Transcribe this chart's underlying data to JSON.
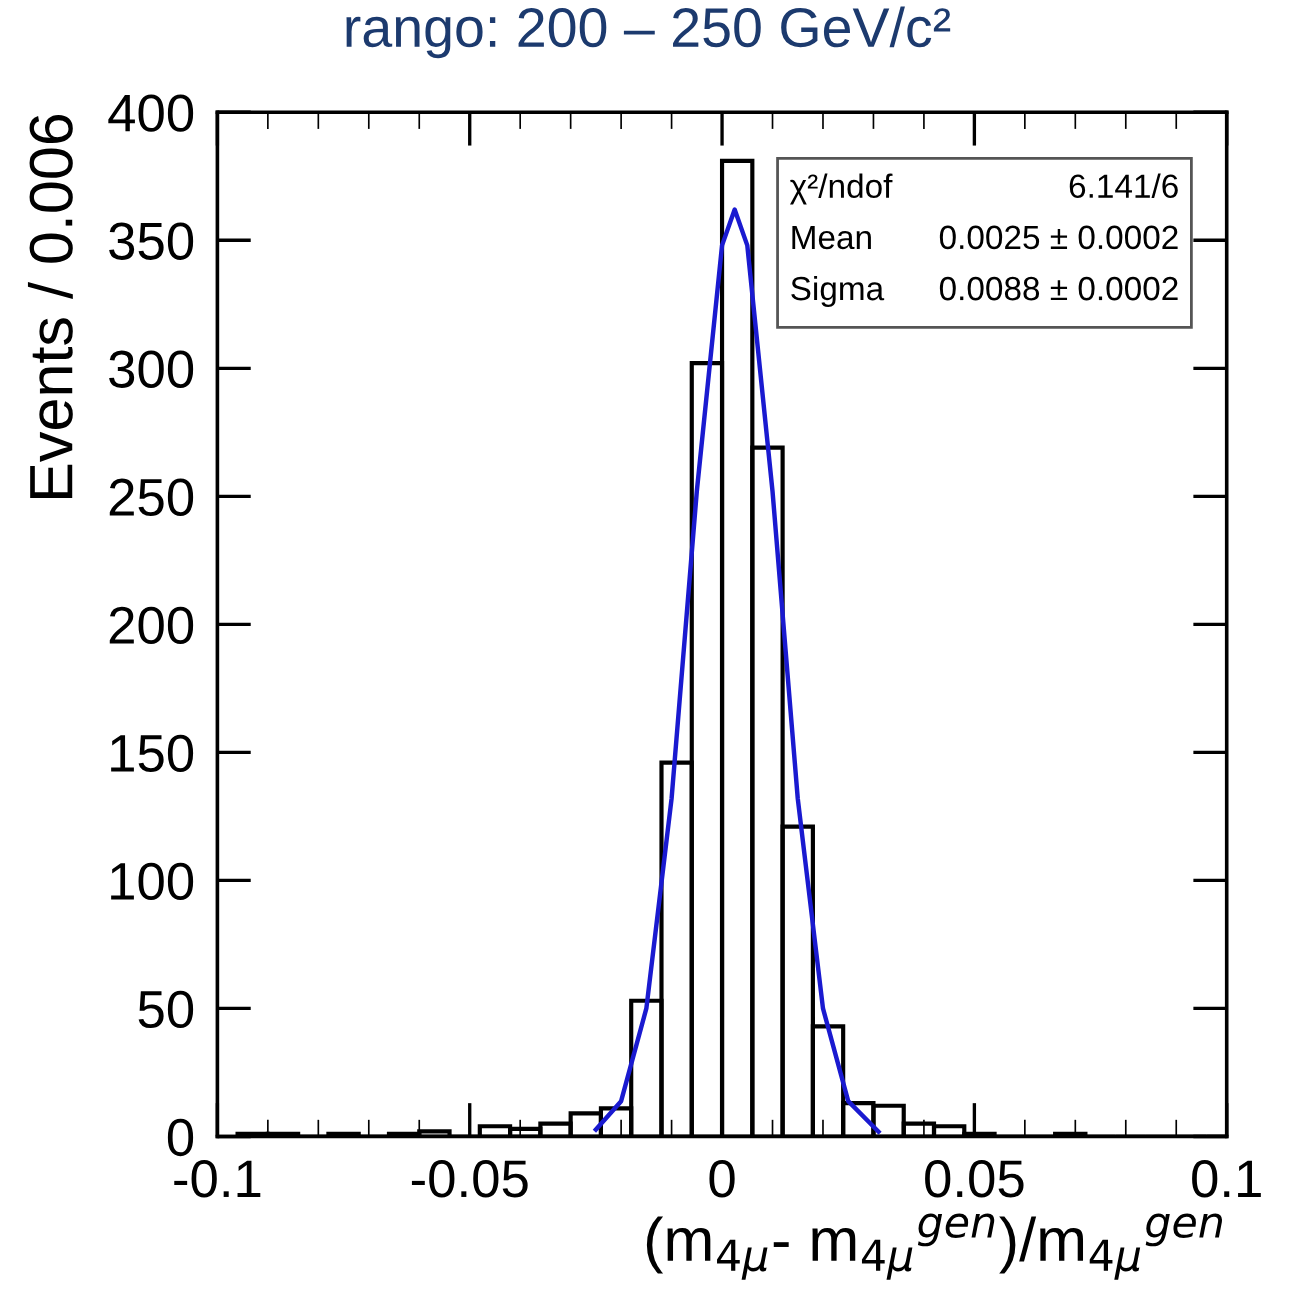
{
  "chart_data": {
    "type": "histogram",
    "title": "rango: 200 – 250 GeV/c²",
    "xlabel": "(m$_{4μ}$- m$_{4μ}$$^{gen}$)/m$_{4μ}$$^{gen}$",
    "ylabel": "Events / 0.006",
    "bins": [
      -0.096,
      -0.09,
      -0.084,
      -0.078,
      -0.072,
      -0.066,
      -0.06,
      -0.054,
      -0.048,
      -0.042,
      -0.036,
      -0.03,
      -0.024,
      -0.018,
      -0.012,
      -0.006,
      0,
      0.006,
      0.012,
      0.018,
      0.024,
      0.03,
      0.036,
      0.042,
      0.048,
      0.054,
      0.06,
      0.066,
      0.072,
      0.078,
      0.084,
      0.09,
      0.096,
      0.102
    ],
    "values": [
      1,
      1,
      0,
      1,
      0,
      1,
      2,
      0,
      4,
      3,
      5,
      9,
      11,
      53,
      146,
      302,
      381,
      269,
      121,
      43,
      13,
      12,
      5,
      4,
      1,
      0,
      0,
      1,
      0,
      0,
      0,
      0,
      0
    ],
    "color": "#000000",
    "series": [
      {
        "type": "line",
        "color": "#1a1ad0",
        "x": [
          -0.025,
          -0.02,
          -0.015,
          -0.01,
          -0.005,
          0,
          0.0025,
          0.005,
          0.01,
          0.015,
          0.02,
          0.025,
          0.031
        ],
        "values": [
          2.7,
          13.8,
          50,
          132,
          252,
          348,
          362,
          348,
          252,
          132,
          50,
          13.8,
          1.9
        ]
      }
    ],
    "xlim": [
      -0.1,
      0.1
    ],
    "xticks": [
      -0.1,
      -0.05,
      0,
      0.05,
      0.1
    ],
    "ylim": [
      0,
      400
    ],
    "yticks": [
      0,
      50,
      100,
      150,
      200,
      250,
      300,
      350,
      400
    ],
    "grid": false,
    "legend": false,
    "annotations": [
      "χ²/ndof",
      "6.141/6",
      "Mean",
      "0.0025 ± 0.0002",
      "Sigma",
      "0.0088 ± 0.0002"
    ]
  }
}
